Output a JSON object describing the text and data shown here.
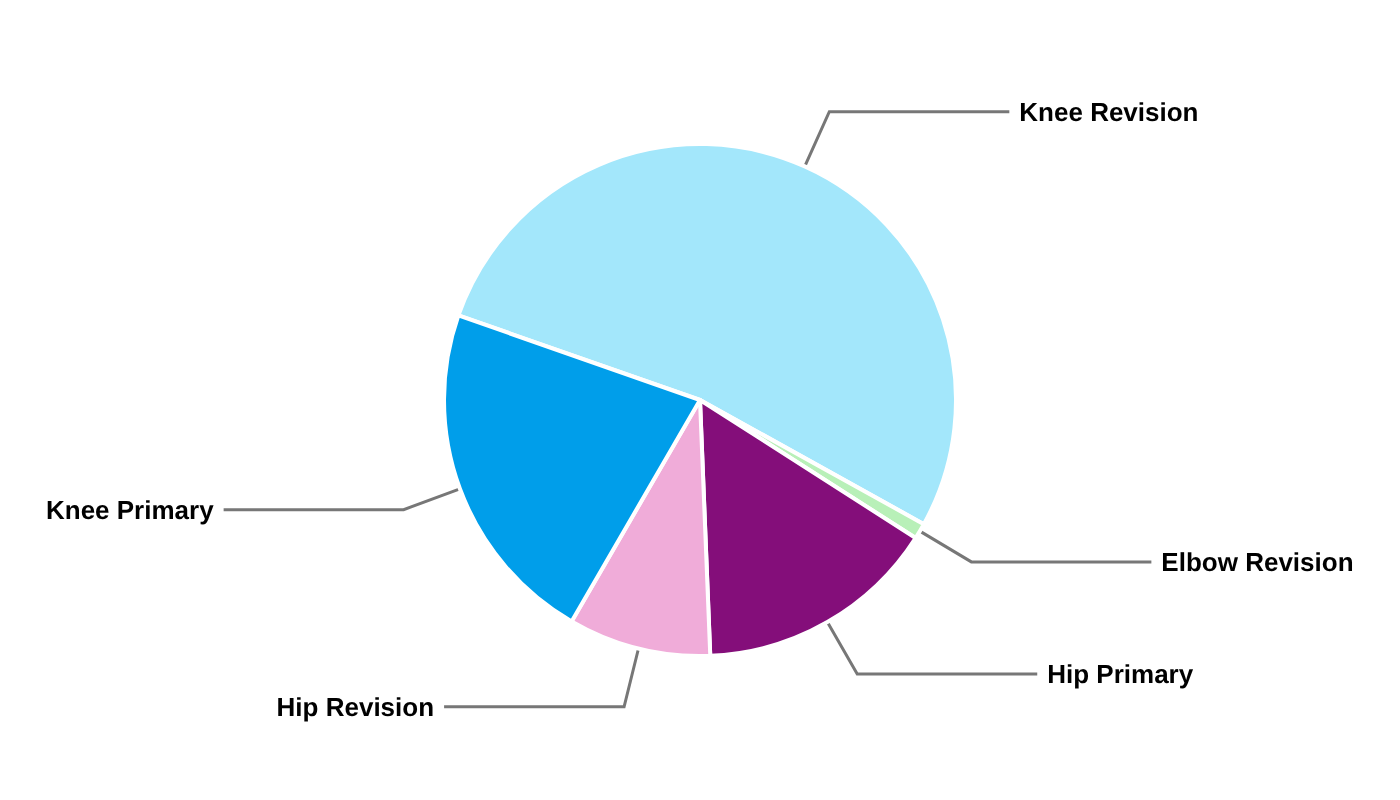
{
  "chart_data": {
    "type": "pie",
    "categories": [
      "Knee Revision",
      "Elbow Revision",
      "Hip Primary",
      "Hip Revision",
      "Knee Primary"
    ],
    "values": [
      52.7,
      1,
      15.3,
      9,
      22
    ],
    "colors": [
      "#a3e7fb",
      "#b8f0b8",
      "#840e7a",
      "#f0acd9",
      "#009eea"
    ]
  }
}
